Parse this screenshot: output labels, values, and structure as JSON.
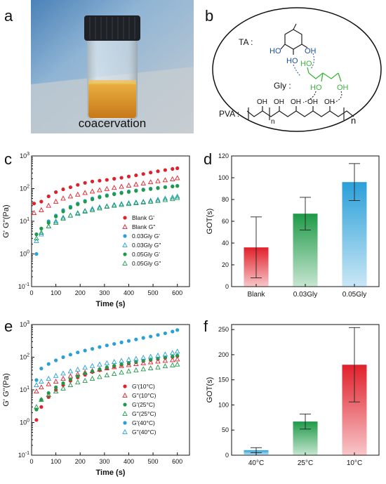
{
  "panels": {
    "a": "a",
    "b": "b",
    "c": "c",
    "d": "d",
    "e": "e",
    "f": "f"
  },
  "photo": {
    "caption": "coacervation"
  },
  "scheme": {
    "ta_label": "TA :",
    "gly_label": "Gly :",
    "pva_label": "PVA :",
    "ho": "HO",
    "oh": "OH",
    "n": "n"
  },
  "colors": {
    "red": "#e0202a",
    "green": "#1f9a48",
    "blue": "#2a9fd8",
    "scheme_blue": "#1d4fa3",
    "scheme_green": "#3cb43c"
  },
  "chart_data": [
    {
      "id": "c",
      "type": "scatter",
      "xlabel": "Time (s)",
      "ylabel": "G' G''(Pa)",
      "xlim": [
        0,
        650
      ],
      "ylim": [
        0.1,
        1000
      ],
      "y_scale": "log",
      "x_ticks": [
        "0",
        "100",
        "200",
        "300",
        "400",
        "500",
        "600"
      ],
      "y_ticks": [
        "10-1",
        "100",
        "101",
        "102",
        "103"
      ],
      "legend_position": "center-right",
      "series": [
        {
          "name": "Blank G'",
          "color": "#e0202a",
          "marker": "filled",
          "x": [
            10,
            40,
            70,
            100,
            130,
            160,
            190,
            220,
            250,
            280,
            310,
            340,
            370,
            400,
            430,
            460,
            490,
            520,
            550,
            580,
            600
          ],
          "y": [
            35,
            40,
            58,
            78,
            95,
            110,
            130,
            150,
            165,
            175,
            185,
            200,
            215,
            235,
            255,
            280,
            310,
            340,
            370,
            400,
            420
          ]
        },
        {
          "name": "Blank G''",
          "color": "#e0202a",
          "marker": "open",
          "x": [
            10,
            40,
            70,
            100,
            130,
            160,
            190,
            220,
            250,
            280,
            310,
            340,
            370,
            400,
            430,
            460,
            490,
            520,
            550,
            580,
            600
          ],
          "y": [
            18,
            22,
            30,
            40,
            50,
            58,
            66,
            74,
            82,
            90,
            98,
            106,
            115,
            124,
            134,
            145,
            158,
            170,
            182,
            195,
            210
          ]
        },
        {
          "name": "0.03Gly G'",
          "color": "#2a9fd8",
          "marker": "filled",
          "x": [
            20,
            40,
            70,
            100,
            130,
            160,
            190,
            220,
            250,
            280,
            310,
            340,
            370,
            400,
            430,
            460,
            490,
            520,
            550,
            580,
            600
          ],
          "y": [
            1.0,
            6,
            10,
            15,
            22,
            28,
            35,
            42,
            50,
            57,
            63,
            70,
            76,
            82,
            88,
            94,
            100,
            106,
            112,
            118,
            122
          ]
        },
        {
          "name": "0.03Gly G''",
          "color": "#2a9fd8",
          "marker": "open",
          "x": [
            20,
            40,
            70,
            100,
            130,
            160,
            190,
            220,
            250,
            280,
            310,
            340,
            370,
            400,
            430,
            460,
            490,
            520,
            550,
            580,
            600
          ],
          "y": [
            2.5,
            4,
            7,
            10,
            13,
            15,
            18,
            21,
            24,
            27,
            29,
            32,
            34,
            36,
            38,
            40,
            43,
            46,
            50,
            54,
            58
          ]
        },
        {
          "name": "0.05Gly G'",
          "color": "#1f9a48",
          "marker": "filled",
          "x": [
            20,
            40,
            70,
            100,
            130,
            160,
            190,
            220,
            250,
            280,
            310,
            340,
            370,
            400,
            430,
            460,
            490,
            520,
            550,
            580,
            600
          ],
          "y": [
            4,
            6,
            9,
            14,
            20,
            26,
            33,
            40,
            47,
            54,
            60,
            67,
            73,
            79,
            85,
            91,
            97,
            103,
            110,
            116,
            120
          ]
        },
        {
          "name": "0.05Gly G''",
          "color": "#1f9a48",
          "marker": "open",
          "x": [
            20,
            40,
            70,
            100,
            130,
            160,
            190,
            220,
            250,
            280,
            310,
            340,
            370,
            400,
            430,
            460,
            490,
            520,
            550,
            580,
            600
          ],
          "y": [
            3,
            4.5,
            7,
            9,
            12,
            15,
            17,
            20,
            22,
            25,
            28,
            30,
            32,
            34,
            36,
            38,
            40,
            42,
            45,
            48,
            52
          ]
        }
      ]
    },
    {
      "id": "d",
      "type": "bar",
      "ylabel": "GOT(s)",
      "ylim": [
        0,
        120
      ],
      "y_ticks": [
        "0",
        "20",
        "40",
        "60",
        "80",
        "100",
        "120"
      ],
      "categories": [
        "Blank",
        "0.03Gly",
        "0.05Gly"
      ],
      "values": [
        36,
        67,
        96
      ],
      "errors": [
        28,
        15,
        17
      ],
      "colors": [
        "#e0202a",
        "#1f9a48",
        "#2a9fd8"
      ]
    },
    {
      "id": "e",
      "type": "scatter",
      "xlabel": "Time (s)",
      "ylabel": "G' G''(Pa)",
      "xlim": [
        0,
        650
      ],
      "ylim": [
        0.1,
        1000
      ],
      "y_scale": "log",
      "x_ticks": [
        "0",
        "100",
        "200",
        "300",
        "400",
        "500",
        "600"
      ],
      "y_ticks": [
        "10-1",
        "100",
        "101",
        "102",
        "103"
      ],
      "legend_position": "center-right",
      "series": [
        {
          "name": "G'(10°C)",
          "color": "#e0202a",
          "marker": "filled",
          "x": [
            20,
            40,
            70,
            100,
            130,
            160,
            190,
            220,
            250,
            280,
            310,
            340,
            370,
            400,
            430,
            460,
            490,
            520,
            550,
            580,
            600
          ],
          "y": [
            1.2,
            3,
            6,
            10,
            14,
            19,
            24,
            29,
            35,
            40,
            46,
            52,
            58,
            64,
            70,
            76,
            82,
            88,
            95,
            102,
            108
          ]
        },
        {
          "name": "G''(10°C)",
          "color": "#e0202a",
          "marker": "open",
          "x": [
            20,
            40,
            70,
            100,
            130,
            160,
            190,
            220,
            250,
            280,
            310,
            340,
            370,
            400,
            430,
            460,
            490,
            520,
            550,
            580,
            600
          ],
          "y": [
            9,
            12,
            15,
            18,
            22,
            26,
            30,
            34,
            38,
            42,
            46,
            50,
            54,
            58,
            62,
            66,
            70,
            74,
            78,
            82,
            86
          ]
        },
        {
          "name": "G'(25°C)",
          "color": "#1f9a48",
          "marker": "filled",
          "x": [
            20,
            40,
            70,
            100,
            130,
            160,
            190,
            220,
            250,
            280,
            310,
            340,
            370,
            400,
            430,
            460,
            490,
            520,
            550,
            580,
            600
          ],
          "y": [
            2.5,
            5,
            8,
            12,
            16,
            21,
            26,
            32,
            37,
            43,
            49,
            55,
            61,
            67,
            73,
            79,
            85,
            92,
            99,
            106,
            113
          ]
        },
        {
          "name": "G''(25°C)",
          "color": "#1f9a48",
          "marker": "open",
          "x": [
            20,
            40,
            70,
            100,
            130,
            160,
            190,
            220,
            250,
            280,
            310,
            340,
            370,
            400,
            430,
            460,
            490,
            520,
            550,
            580,
            600
          ],
          "y": [
            3,
            5,
            7,
            9,
            11,
            14,
            17,
            19,
            22,
            25,
            28,
            31,
            34,
            37,
            40,
            43,
            46,
            49,
            53,
            57,
            60
          ]
        },
        {
          "name": "G'(40°C)",
          "color": "#2a9fd8",
          "marker": "filled",
          "x": [
            20,
            40,
            70,
            100,
            130,
            160,
            190,
            220,
            250,
            280,
            310,
            340,
            370,
            400,
            430,
            460,
            490,
            520,
            550,
            580,
            600
          ],
          "y": [
            20,
            45,
            62,
            80,
            100,
            120,
            140,
            160,
            180,
            205,
            230,
            255,
            285,
            315,
            350,
            390,
            430,
            480,
            540,
            610,
            680
          ]
        },
        {
          "name": "G''(40°C)",
          "color": "#2a9fd8",
          "marker": "open",
          "x": [
            20,
            40,
            70,
            100,
            130,
            160,
            190,
            220,
            250,
            280,
            310,
            340,
            370,
            400,
            430,
            460,
            490,
            520,
            550,
            580,
            600
          ],
          "y": [
            14,
            18,
            22,
            27,
            32,
            37,
            42,
            48,
            54,
            60,
            66,
            72,
            78,
            84,
            90,
            97,
            104,
            112,
            122,
            135,
            150
          ]
        }
      ]
    },
    {
      "id": "f",
      "type": "bar",
      "ylabel": "GOT(s)",
      "ylim": [
        0,
        260
      ],
      "y_ticks": [
        "0",
        "50",
        "100",
        "150",
        "200",
        "250"
      ],
      "categories": [
        "40°C",
        "25°C",
        "10°C"
      ],
      "values": [
        10,
        67,
        180
      ],
      "errors": [
        5,
        15,
        74
      ],
      "colors": [
        "#2a9fd8",
        "#1f9a48",
        "#e0202a"
      ]
    }
  ]
}
